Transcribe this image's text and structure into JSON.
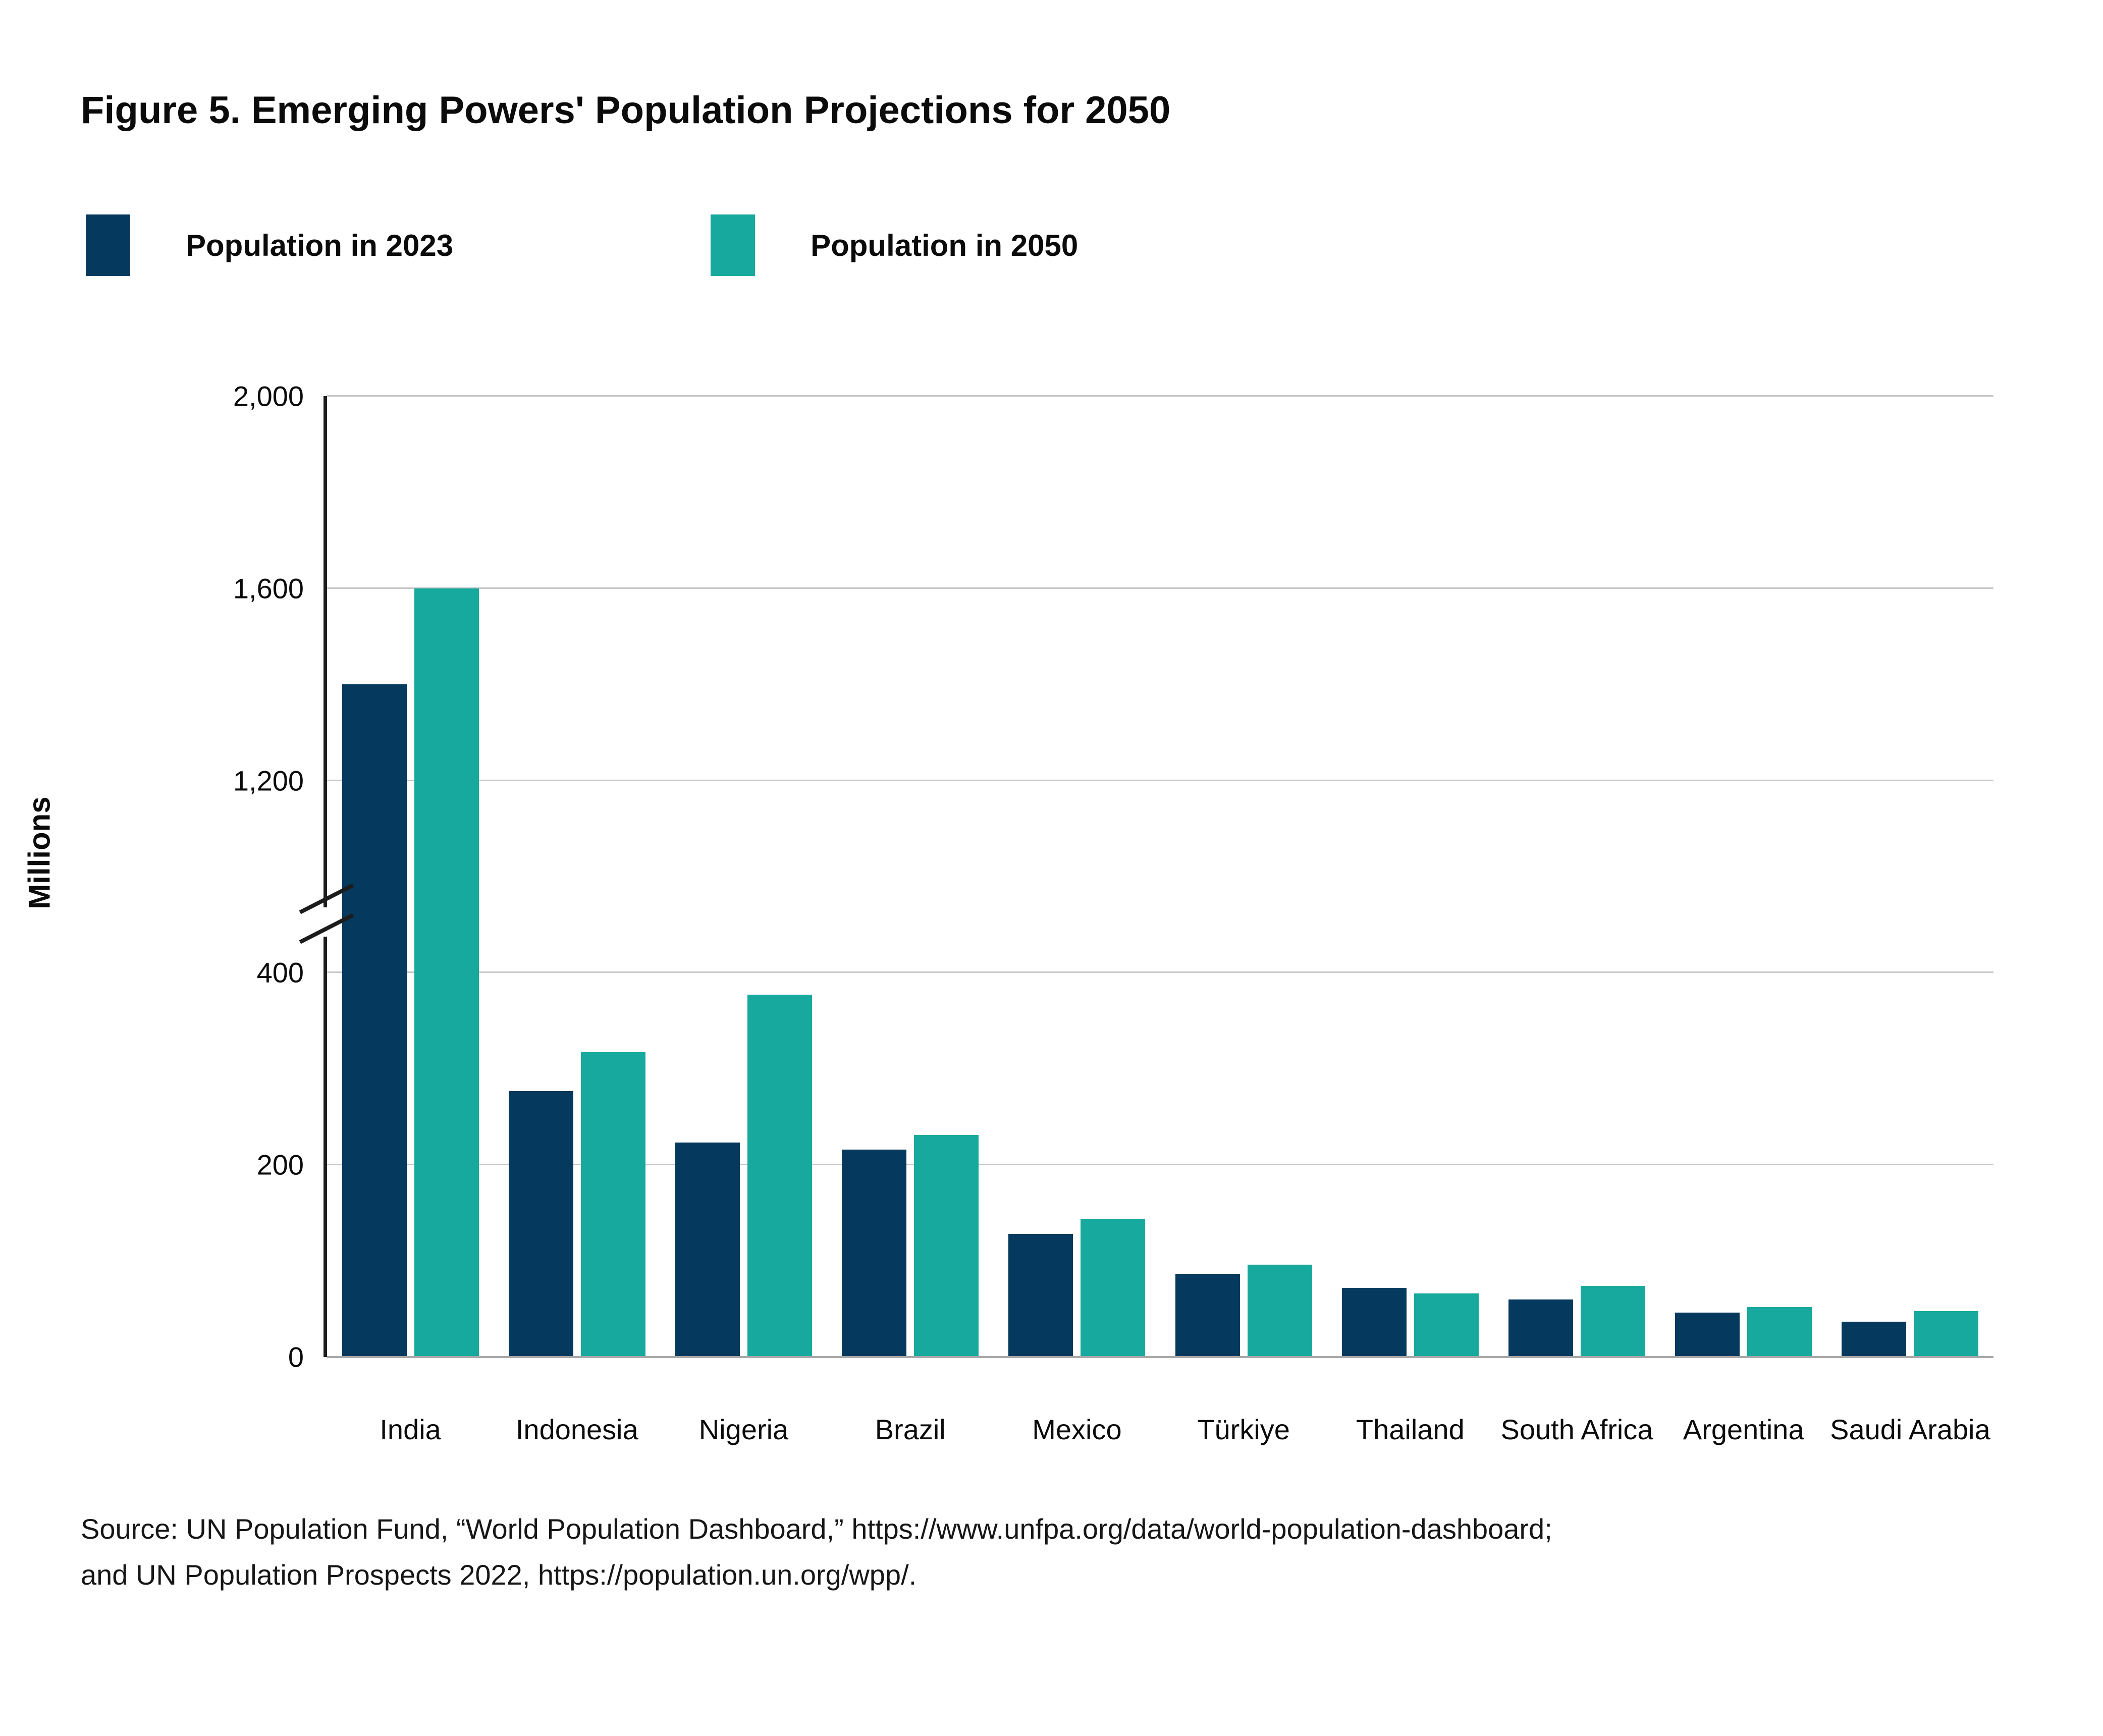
{
  "title": "Figure 5. Emerging Powers' Population Projections for 2050",
  "chart_data": {
    "type": "bar",
    "title": "Figure 5. Emerging Powers' Population Projections for 2050",
    "ylabel": "Millions",
    "xlabel": "",
    "grid": "horizontal",
    "legend_position": "top-left",
    "axis_break": {
      "between": [
        400,
        1200
      ],
      "note": "y-axis broken between 400 and 1,200"
    },
    "y_ticks": [
      {
        "value": 0,
        "label": "0"
      },
      {
        "value": 200,
        "label": "200"
      },
      {
        "value": 400,
        "label": "400"
      },
      {
        "value": 1200,
        "label": "1,200"
      },
      {
        "value": 1600,
        "label": "1,600"
      },
      {
        "value": 2000,
        "label": "2,000"
      }
    ],
    "ylim": [
      0,
      2000
    ],
    "categories": [
      "India",
      "Indonesia",
      "Nigeria",
      "Brazil",
      "Mexico",
      "Türkiye",
      "Thailand",
      "South Africa",
      "Argentina",
      "Saudi Arabia"
    ],
    "series": [
      {
        "name": "Population in 2023",
        "color": "#053a5e",
        "values": [
          1400,
          277,
          223,
          216,
          128,
          86,
          72,
          60,
          46,
          37
        ]
      },
      {
        "name": "Population in 2050",
        "color": "#17a99e",
        "values": [
          1600,
          317,
          377,
          231,
          144,
          96,
          66,
          74,
          52,
          48
        ]
      }
    ]
  },
  "colors": {
    "series_2023": "#053a5e",
    "series_2050": "#17a99e",
    "gridline": "#c7c7c7",
    "axis": "#1c1c1c",
    "text": "#0b0b0b"
  },
  "source": {
    "line1": "Source: UN Population Fund, “World Population Dashboard,” https://www.unfpa.org/data/world-population-dashboard;",
    "line2": "and UN Population Prospects 2022,  https://population.un.org/wpp/."
  }
}
